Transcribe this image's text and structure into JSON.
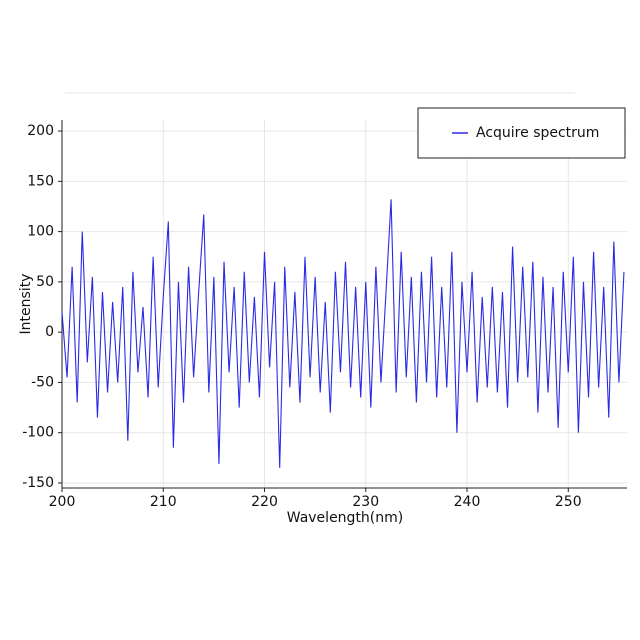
{
  "chart_data": {
    "type": "line",
    "xlabel": "Wavelength(nm)",
    "ylabel": "Intensity",
    "xlim": [
      200,
      255.8
    ],
    "ylim": [
      -155,
      211
    ],
    "xticks": [
      200,
      210,
      220,
      230,
      240,
      250
    ],
    "yticks": [
      -150,
      -100,
      -50,
      0,
      50,
      100,
      150,
      200
    ],
    "grid": true,
    "legend": "upper right",
    "x": [
      200,
      200.5,
      201,
      201.5,
      202,
      202.5,
      203,
      203.5,
      204,
      204.5,
      205,
      205.5,
      206,
      206.5,
      207,
      207.5,
      208,
      208.5,
      209,
      209.5,
      210,
      210.5,
      211,
      211.5,
      212,
      212.5,
      213,
      213.5,
      214,
      214.5,
      215,
      215.5,
      216,
      216.5,
      217,
      217.5,
      218,
      218.5,
      219,
      219.5,
      220,
      220.5,
      221,
      221.5,
      222,
      222.5,
      223,
      223.5,
      224,
      224.5,
      225,
      225.5,
      226,
      226.5,
      227,
      227.5,
      228,
      228.5,
      229,
      229.5,
      230,
      230.5,
      231,
      231.5,
      232,
      232.5,
      233,
      233.5,
      234,
      234.5,
      235,
      235.5,
      236,
      236.5,
      237,
      237.5,
      238,
      238.5,
      239,
      239.5,
      240,
      240.5,
      241,
      241.5,
      242,
      242.5,
      243,
      243.5,
      244,
      244.5,
      245,
      245.5,
      246,
      246.5,
      247,
      247.5,
      248,
      248.5,
      249,
      249.5,
      250,
      250.5,
      251,
      251.5,
      252,
      252.5,
      253,
      253.5,
      254,
      254.5,
      255,
      255.5
    ],
    "series": [
      {
        "name": "Acquire spectrum",
        "color": "#2a2ae6",
        "values": [
          20,
          -45,
          65,
          -70,
          100,
          -30,
          55,
          -85,
          40,
          -60,
          30,
          -50,
          45,
          -108,
          60,
          -40,
          25,
          -65,
          75,
          -55,
          35,
          110,
          -115,
          50,
          -70,
          65,
          -45,
          40,
          117,
          -60,
          55,
          -131,
          70,
          -40,
          45,
          -75,
          60,
          -50,
          35,
          -65,
          80,
          -35,
          50,
          -135,
          65,
          -55,
          40,
          -70,
          75,
          -45,
          55,
          -60,
          30,
          -80,
          60,
          -40,
          70,
          -55,
          45,
          -65,
          50,
          -75,
          65,
          -50,
          40,
          132,
          -60,
          80,
          -45,
          55,
          -70,
          60,
          -50,
          75,
          -65,
          45,
          -55,
          80,
          -100,
          50,
          -40,
          60,
          -70,
          35,
          -55,
          45,
          -60,
          40,
          -75,
          85,
          -50,
          65,
          -45,
          70,
          -80,
          55,
          -60,
          45,
          -95,
          60,
          -40,
          75,
          -100,
          50,
          -65,
          80,
          -55,
          45,
          -85,
          90,
          -50,
          60
        ]
      }
    ]
  }
}
